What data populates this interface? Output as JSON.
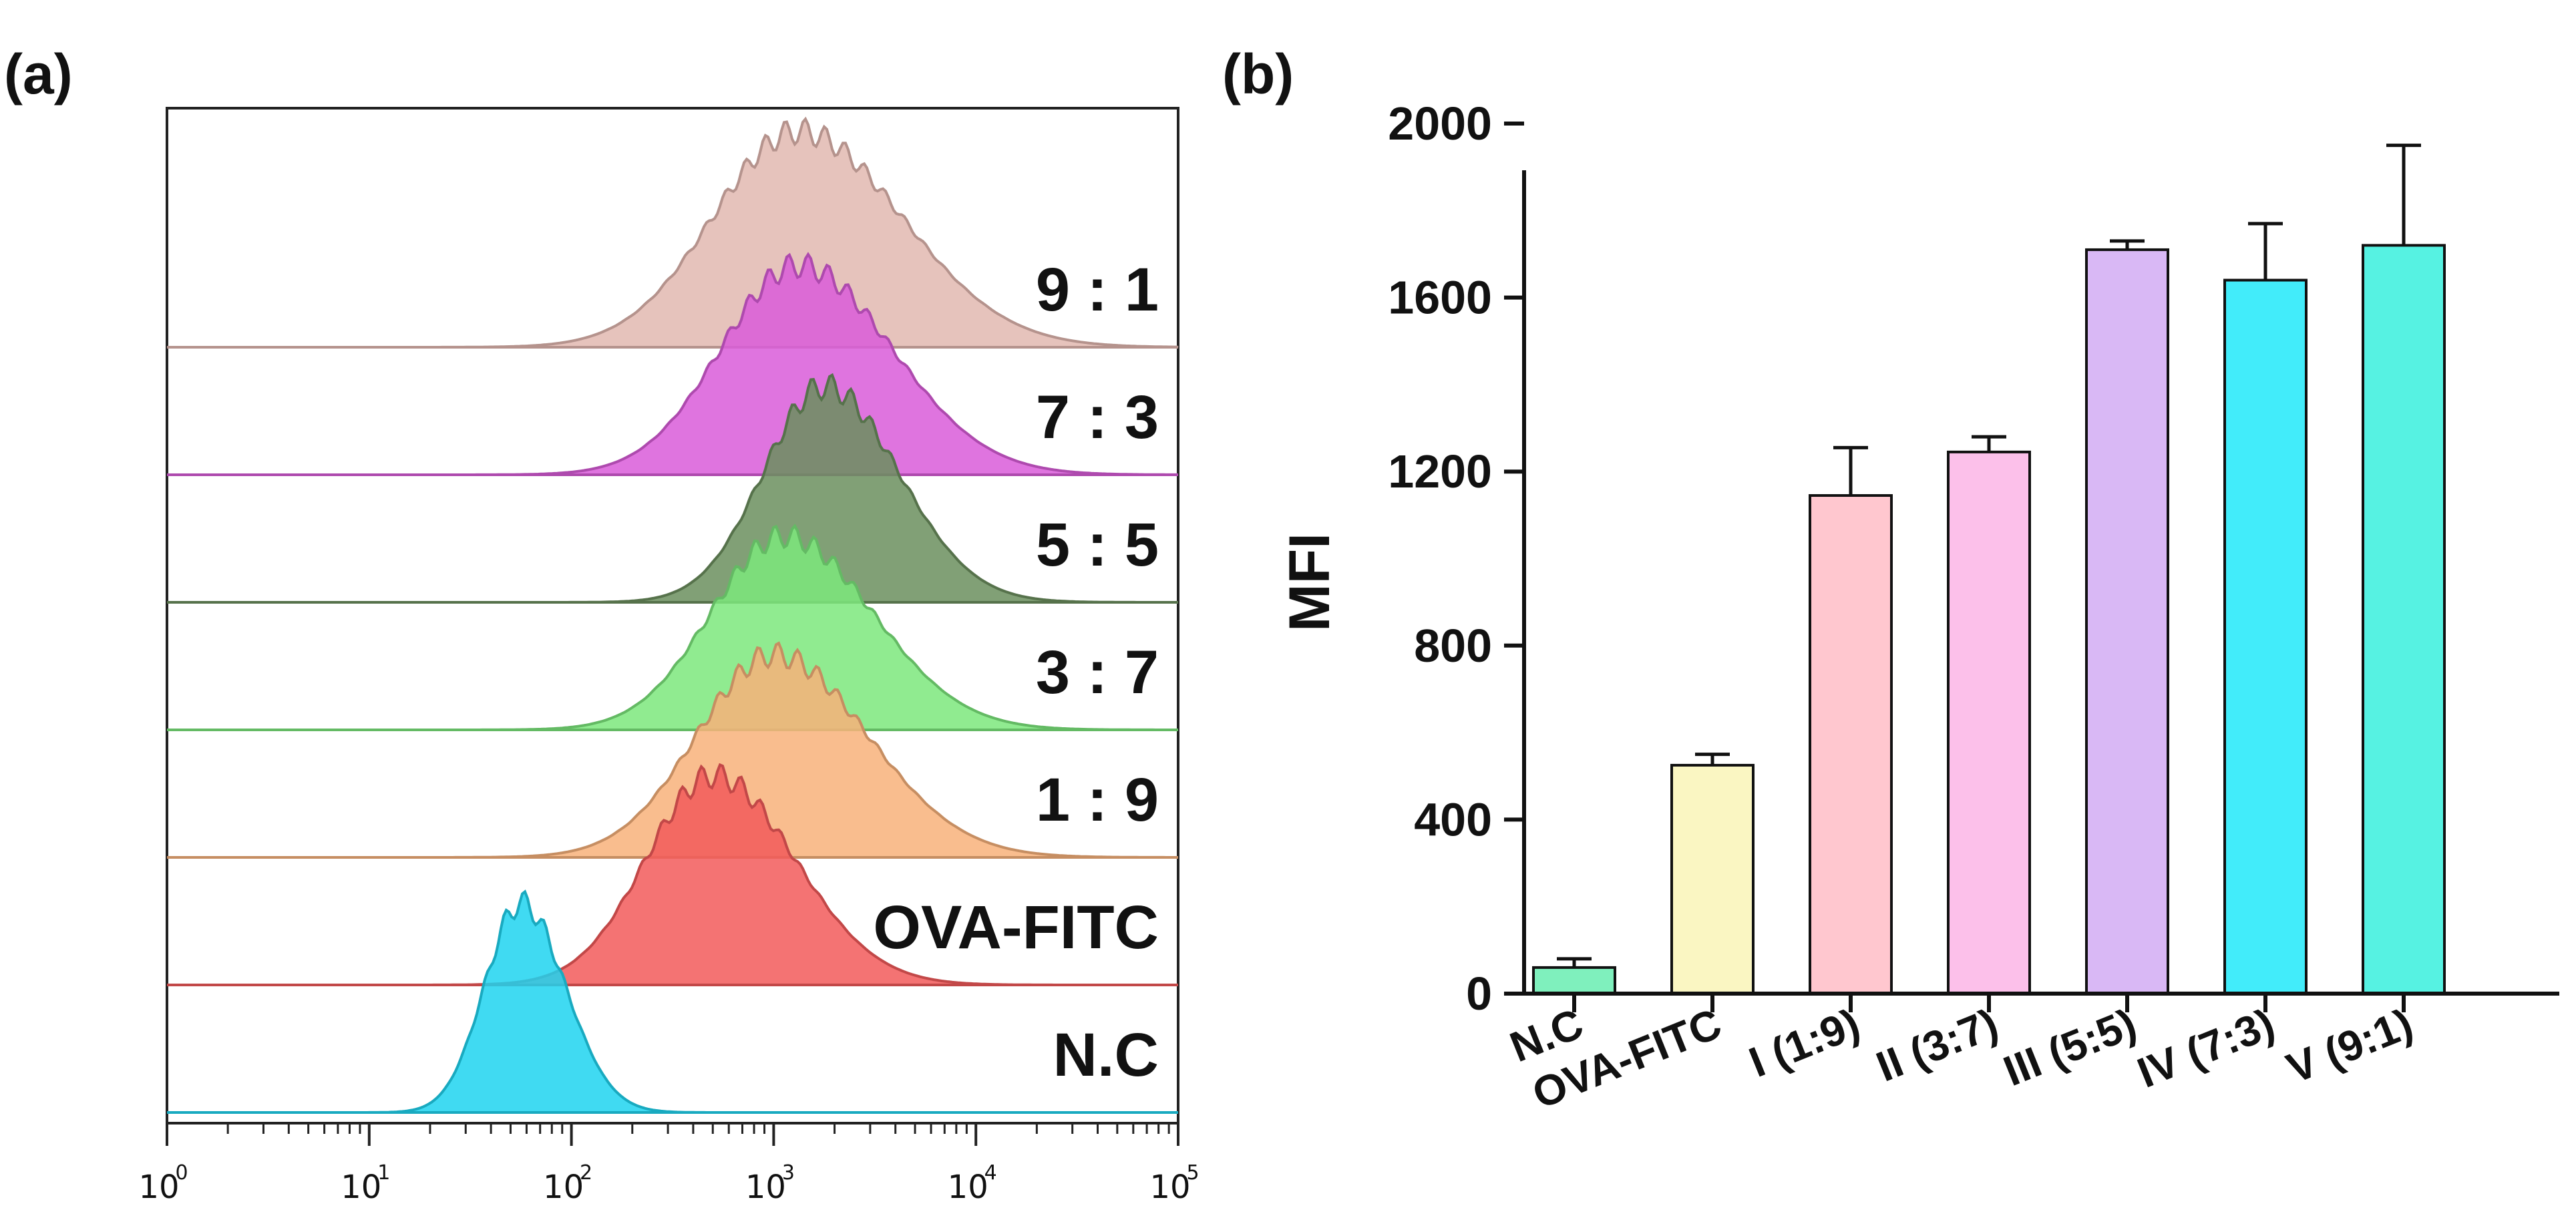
{
  "panels": {
    "a_label": "(a)",
    "b_label": "(b)"
  },
  "chart_data": [
    {
      "type": "area",
      "panel": "(a)",
      "title": "",
      "xlabel": "",
      "ylabel": "",
      "x_scale": "log10",
      "xlim": [
        1,
        100000
      ],
      "x_tick_labels": [
        {
          "base": "10",
          "exp": "0"
        },
        {
          "base": "10",
          "exp": "1"
        },
        {
          "base": "10",
          "exp": "2"
        },
        {
          "base": "10",
          "exp": "3"
        },
        {
          "base": "10",
          "exp": "4"
        },
        {
          "base": "10",
          "exp": "5"
        }
      ],
      "series": [
        {
          "name": "N.C",
          "label": "N.C",
          "color": "#1fd4f0",
          "peak_log10": 1.75,
          "sd_log10": 0.18,
          "height": 0.95
        },
        {
          "name": "OVA-FITC",
          "label": "OVA-FITC",
          "color": "#f25a5a",
          "peak_log10": 2.7,
          "sd_log10": 0.33,
          "height": 0.95
        },
        {
          "name": "1:9",
          "label": "1  :  9",
          "color": "#f8b27a",
          "peak_log10": 3.0,
          "sd_log10": 0.38,
          "height": 0.92
        },
        {
          "name": "3:7",
          "label": "3  :  7",
          "color": "#7de87d",
          "peak_log10": 3.05,
          "sd_log10": 0.36,
          "height": 0.88
        },
        {
          "name": "5:5",
          "label": "5  :  5",
          "color": "#6b8f5e",
          "peak_log10": 3.25,
          "sd_log10": 0.3,
          "height": 0.98
        },
        {
          "name": "7:3",
          "label": "7  :  3",
          "color": "#d95cd9",
          "peak_log10": 3.12,
          "sd_log10": 0.38,
          "height": 0.95
        },
        {
          "name": "9:1",
          "label": "9  :  1",
          "color": "#e2b8b0",
          "peak_log10": 3.12,
          "sd_log10": 0.42,
          "height": 0.98
        }
      ]
    },
    {
      "type": "bar",
      "panel": "(b)",
      "title": "",
      "xlabel": "",
      "ylabel": "MFI",
      "ylim": [
        0,
        2000
      ],
      "yticks": [
        0,
        400,
        800,
        1200,
        1600,
        2000
      ],
      "categories": [
        "N.C",
        "OVA-FITC",
        "I (1:9)",
        "II (3:7)",
        "III (5:5)",
        "IV (7:3)",
        "V (9:1)"
      ],
      "values": [
        60,
        525,
        1145,
        1245,
        1710,
        1640,
        1720
      ],
      "errors": [
        20,
        25,
        110,
        35,
        20,
        130,
        230
      ],
      "colors": [
        "#7ff0bd",
        "#faf6c2",
        "#ffc7cf",
        "#fcc0ea",
        "#d9b8f5",
        "#42ecfa",
        "#56f2e2"
      ]
    }
  ]
}
